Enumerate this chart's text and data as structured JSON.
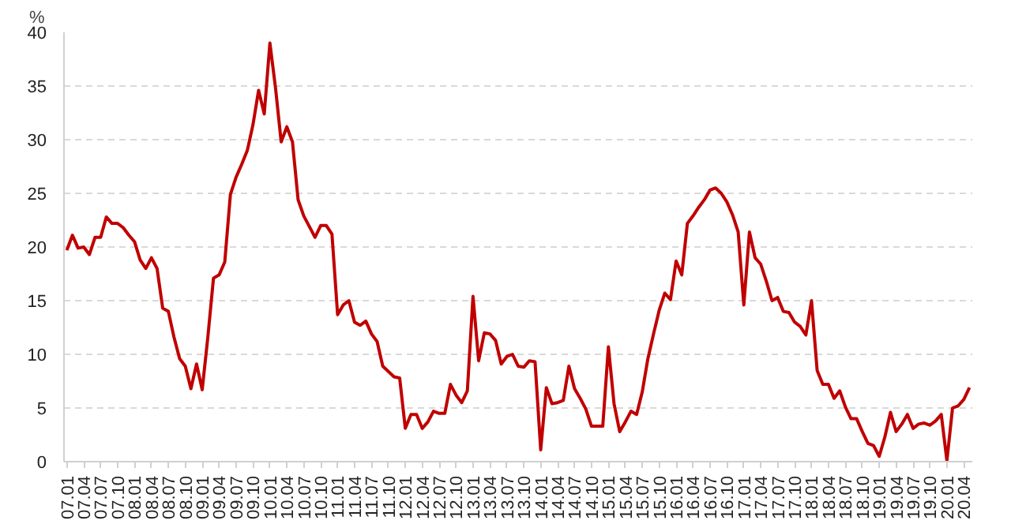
{
  "chart_data": {
    "type": "line",
    "ylabel": "%",
    "categories": [
      "07.01",
      null,
      null,
      "07.04",
      null,
      null,
      "07.07",
      null,
      null,
      "07.10",
      null,
      null,
      "08.01",
      null,
      null,
      "08.04",
      null,
      null,
      "08.07",
      null,
      null,
      "08.10",
      null,
      null,
      "09.01",
      null,
      null,
      "09.04",
      null,
      null,
      "09.07",
      null,
      null,
      "09.10",
      null,
      null,
      "10.01",
      null,
      null,
      "10.04",
      null,
      null,
      "10.07",
      null,
      null,
      "10.10",
      null,
      null,
      "11.01",
      null,
      null,
      "11.04",
      null,
      null,
      "11.07",
      null,
      null,
      "11.10",
      null,
      null,
      "12.01",
      null,
      null,
      "12.04",
      null,
      null,
      "12.07",
      null,
      null,
      "12.10",
      null,
      null,
      "13.01",
      null,
      null,
      "13.04",
      null,
      null,
      "13.07",
      null,
      null,
      "13.10",
      null,
      null,
      "14.01",
      null,
      null,
      "14.04",
      null,
      null,
      "14.07",
      null,
      null,
      "14.10",
      null,
      null,
      "15.01",
      null,
      null,
      "15.04",
      null,
      null,
      "15.07",
      null,
      null,
      "15.10",
      null,
      null,
      "16.01",
      null,
      null,
      "16.04",
      null,
      null,
      "16.07",
      null,
      null,
      "16.10",
      null,
      null,
      "17.01",
      null,
      null,
      "17.04",
      null,
      null,
      "17.07",
      null,
      null,
      "17.10",
      null,
      null,
      "18.01",
      null,
      null,
      "18.04",
      null,
      null,
      "18.07",
      null,
      null,
      "18.10",
      null,
      null,
      "19.01",
      null,
      null,
      "19.04",
      null,
      null,
      "19.07",
      null,
      null,
      "19.10",
      null,
      null,
      "20.01",
      null,
      null,
      "20.04",
      null
    ],
    "series": [
      {
        "color": "#c00000",
        "values": [
          19.7,
          21.1,
          19.9,
          20.0,
          19.3,
          20.9,
          20.9,
          22.8,
          22.2,
          22.2,
          21.8,
          21.1,
          20.5,
          18.8,
          18.0,
          19.0,
          18.0,
          14.3,
          14.0,
          11.6,
          9.6,
          8.9,
          6.8,
          9.1,
          6.7,
          11.6,
          17.1,
          17.4,
          18.6,
          24.9,
          26.5,
          27.7,
          29.0,
          31.4,
          34.6,
          32.4,
          39.0,
          34.8,
          29.8,
          31.2,
          29.8,
          24.4,
          22.9,
          21.9,
          20.9,
          22.0,
          22.0,
          21.2,
          13.7,
          14.6,
          15.0,
          13.0,
          12.7,
          13.1,
          11.9,
          11.2,
          8.9,
          8.4,
          7.9,
          7.8,
          3.1,
          4.4,
          4.4,
          3.1,
          3.7,
          4.7,
          4.5,
          4.5,
          7.2,
          6.2,
          5.5,
          6.6,
          15.4,
          9.4,
          12.0,
          11.9,
          11.3,
          9.1,
          9.8,
          10.0,
          8.9,
          8.8,
          9.4,
          9.3,
          1.1,
          6.9,
          5.4,
          5.5,
          5.7,
          8.9,
          6.8,
          5.9,
          4.9,
          3.3,
          3.3,
          3.3,
          10.7,
          5.4,
          2.8,
          3.7,
          4.7,
          4.4,
          6.5,
          9.6,
          11.9,
          14.1,
          15.7,
          15.1,
          18.7,
          17.4,
          22.2,
          22.9,
          23.7,
          24.4,
          25.3,
          25.5,
          25.0,
          24.2,
          23.0,
          21.4,
          14.6,
          21.4,
          19.0,
          18.4,
          16.8,
          15.0,
          15.3,
          14.0,
          13.9,
          13.0,
          12.6,
          11.8,
          15.0,
          8.5,
          7.2,
          7.2,
          5.9,
          6.6,
          5.1,
          4.0,
          4.0,
          2.8,
          1.7,
          1.5,
          0.5,
          2.3,
          4.6,
          2.8,
          3.5,
          4.4,
          3.1,
          3.5,
          3.6,
          3.4,
          3.8,
          4.4,
          0.1,
          5.0,
          5.2,
          5.8,
          6.9
        ]
      }
    ],
    "ylim": [
      0,
      40
    ],
    "yticks": [
      0,
      5,
      10,
      15,
      20,
      25,
      30,
      35,
      40
    ],
    "grid": "y",
    "marker": "none",
    "line_style": "solid"
  }
}
